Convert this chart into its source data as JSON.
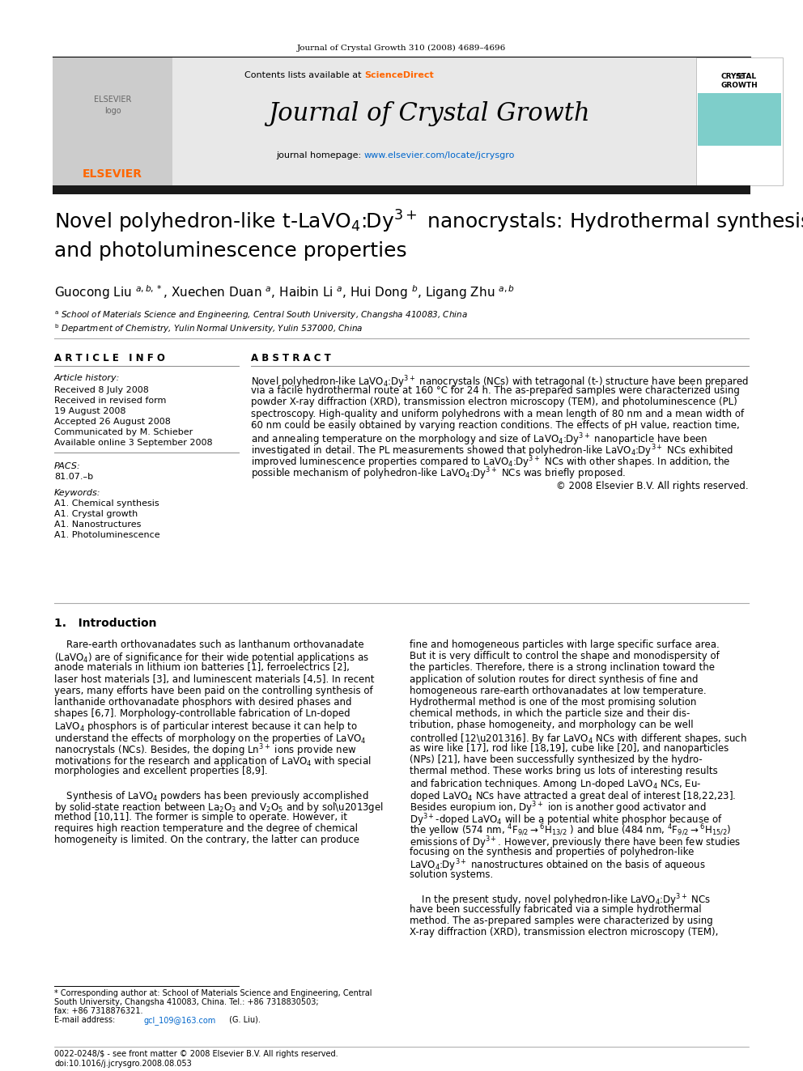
{
  "page_citation": "Journal of Crystal Growth 310 (2008) 4689–4696",
  "journal_name": "Journal of Crystal Growth",
  "contents_line": "Contents lists available at ScienceDirect",
  "article_info_header": "A R T I C L E   I N F O",
  "abstract_header": "A B S T R A C T",
  "article_history_label": "Article history:",
  "received": "Received 8 July 2008",
  "received_revised": "Received in revised form",
  "revised_date": "19 August 2008",
  "accepted": "Accepted 26 August 2008",
  "communicated": "Communicated by M. Schieber",
  "available": "Available online 3 September 2008",
  "pacs_label": "PACS:",
  "pacs_value": "81.07.–b",
  "keywords_label": "Keywords:",
  "keywords": [
    "A1. Chemical synthesis",
    "A1. Crystal growth",
    "A1. Nanostructures",
    "A1. Photoluminescence"
  ],
  "abstract_text": "Novel polyhedron-like LaVO4:Dy3+ nanocrystals (NCs) with tetragonal (t-) structure have been prepared via a facile hydrothermal route at 160 °C for 24 h. The as-prepared samples were characterized using powder X-ray diffraction (XRD), transmission electron microscopy (TEM), and photoluminescence (PL) spectroscopy. High-quality and uniform polyhedrons with a mean length of 80 nm and a mean width of 60 nm could be easily obtained by varying reaction conditions. The effects of pH value, reaction time, and annealing temperature on the morphology and size of LaVO4:Dy3+ nanoparticle have been investigated in detail. The PL measurements showed that polyhedron-like LaVO4:Dy3+ NCs exhibited improved luminescence properties compared to LaVO4:Dy3+ NCs with other shapes. In addition, the possible mechanism of polyhedron-like LaVO4:Dy3+ NCs was briefly proposed.",
  "copyright": "© 2008 Elsevier B.V. All rights reserved.",
  "intro_header": "1.   Introduction",
  "footnote_line1": "* Corresponding author at: School of Materials Science and Engineering, Central",
  "footnote_line2": "South University, Changsha 410083, China. Tel.: +86 7318830503;",
  "footnote_line3": "fax: +86 7318876321.",
  "footnote_line4": "E-mail address: gcl_109@163.com (G. Liu).",
  "footer_left": "0022-0248/$ - see front matter © 2008 Elsevier B.V. All rights reserved.",
  "footer_doi": "doi:10.1016/j.jcrysgro.2008.08.053",
  "elsevier_color": "#FF6600",
  "link_color": "#0066CC",
  "sciencedirect_color": "#FF6600",
  "header_bg": "#E8E8E8",
  "cover_teal": "#7ECECA",
  "black_bar_color": "#1A1A1A"
}
